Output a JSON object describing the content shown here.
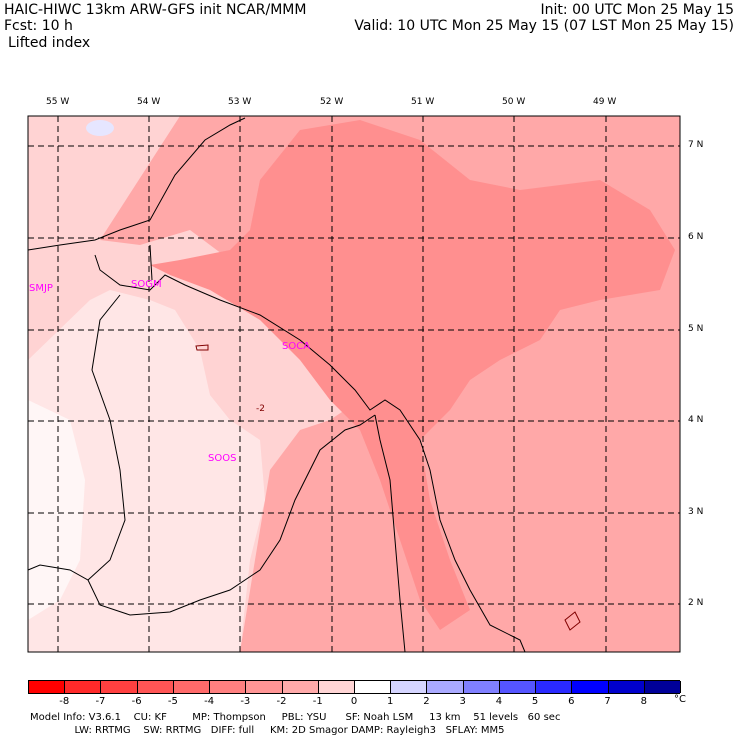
{
  "header": {
    "title": "HAIC-HIWC 13km ARW-GFS init   NCAR/MMM",
    "init": "Init: 00 UTC Mon 25 May 15",
    "fcst": "Fcst:    10 h",
    "valid": "Valid: 10 UTC Mon 25 May 15 (07 LST Mon 25 May 15)",
    "field": "Lifted index"
  },
  "lon_labels": [
    "55 W",
    "54 W",
    "53 W",
    "52 W",
    "51 W",
    "50 W",
    "49 W"
  ],
  "lat_labels": [
    "7 N",
    "6 N",
    "5 N",
    "4 N",
    "3 N",
    "2 N"
  ],
  "stations": [
    "SMJP",
    "SOGM",
    "SOCA",
    "SOOS"
  ],
  "contour_label": "-2",
  "colorbar": {
    "ticks": [
      "-8",
      "-7",
      "-6",
      "-5",
      "-4",
      "-3",
      "-2",
      "-1",
      "0",
      "1",
      "2",
      "3",
      "4",
      "5",
      "6",
      "7",
      "8"
    ],
    "unit": "°C",
    "colors": [
      "#ff0000",
      "#ff2a2a",
      "#ff4040",
      "#ff5555",
      "#ff6a6a",
      "#ff8080",
      "#ff9595",
      "#ffaaaa",
      "#ffd5d5",
      "#ffffff",
      "#d5d5ff",
      "#aaaaff",
      "#8080ff",
      "#5555ff",
      "#2a2aff",
      "#0000ff",
      "#0000cc",
      "#000099"
    ]
  },
  "footer": {
    "line1": "Model Info: V3.6.1    CU: KF        MP: Thompson     PBL: YSU      SF: Noah LSM     13 km    51 levels   60 sec",
    "line2": "              LW: RRTMG    SW: RRTMG   DIFF: full     KM: 2D Smagor DAMP: Rayleigh3   SFLAY: MM5"
  },
  "colors": {
    "li_minus3": "#ff8f8f",
    "li_minus2": "#ffa8a8",
    "li_minus1": "#ffd3d3",
    "li_zero": "#fff0f0",
    "border": "#000000",
    "grid": "#000000",
    "station": "#ff00ff",
    "contour": "#800000"
  }
}
